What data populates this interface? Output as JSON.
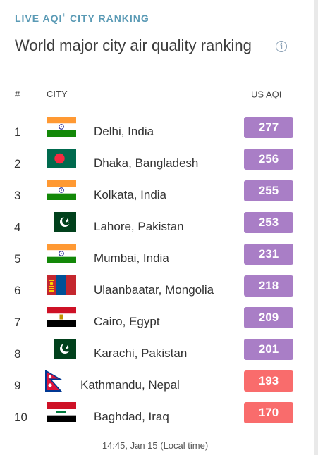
{
  "header": {
    "eyebrow": "LIVE AQI",
    "eyebrow_sup": "+",
    "eyebrow_suffix": "CITY RANKING",
    "title": "World major city air quality ranking",
    "info_icon": "info-circle-icon"
  },
  "table": {
    "col_rank": "#",
    "col_city": "CITY",
    "col_aqi": "US AQI",
    "col_aqi_sup": "+",
    "rows": [
      {
        "rank": "1",
        "city": "Delhi, India",
        "aqi": "277",
        "flag": "india-flag-icon",
        "level": "purple"
      },
      {
        "rank": "2",
        "city": "Dhaka, Bangladesh",
        "aqi": "256",
        "flag": "bangladesh-flag-icon",
        "level": "purple"
      },
      {
        "rank": "3",
        "city": "Kolkata, India",
        "aqi": "255",
        "flag": "india-flag-icon",
        "level": "purple"
      },
      {
        "rank": "4",
        "city": "Lahore, Pakistan",
        "aqi": "253",
        "flag": "pakistan-flag-icon",
        "level": "purple"
      },
      {
        "rank": "5",
        "city": "Mumbai, India",
        "aqi": "231",
        "flag": "india-flag-icon",
        "level": "purple"
      },
      {
        "rank": "6",
        "city": "Ulaanbaatar, Mongolia",
        "aqi": "218",
        "flag": "mongolia-flag-icon",
        "level": "purple"
      },
      {
        "rank": "7",
        "city": "Cairo, Egypt",
        "aqi": "209",
        "flag": "egypt-flag-icon",
        "level": "purple"
      },
      {
        "rank": "8",
        "city": "Karachi, Pakistan",
        "aqi": "201",
        "flag": "pakistan-flag-icon",
        "level": "purple"
      },
      {
        "rank": "9",
        "city": "Kathmandu, Nepal",
        "aqi": "193",
        "flag": "nepal-flag-icon",
        "level": "red"
      },
      {
        "rank": "10",
        "city": "Baghdad, Iraq",
        "aqi": "170",
        "flag": "iraq-flag-icon",
        "level": "red"
      }
    ]
  },
  "colors": {
    "accent": "#5a9ab5",
    "purple_badge": "#a97ec6",
    "red_badge": "#f96c6c"
  },
  "footer": {
    "timestamp": "14:45, Jan 15 (Local time)"
  }
}
